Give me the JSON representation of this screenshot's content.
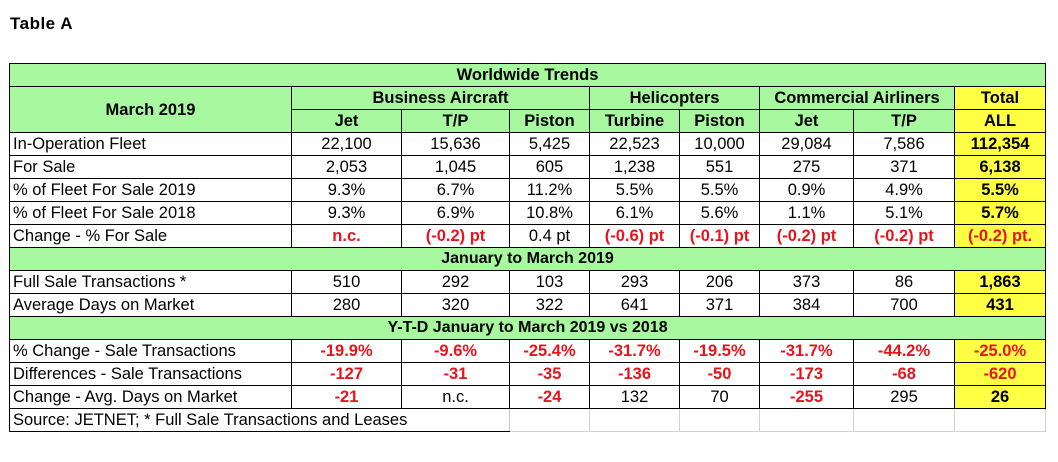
{
  "caption": "Table A",
  "header": {
    "title": "Worldwide Trends",
    "period": "March 2019",
    "groups": [
      "Business Aircraft",
      "Helicopters",
      "Commercial Airliners",
      "Total"
    ],
    "columns": [
      "Jet",
      "T/P",
      "Piston",
      "Turbine",
      "Piston",
      "Jet",
      "T/P",
      "ALL"
    ]
  },
  "section1": [
    {
      "label": "In-Operation Fleet",
      "values": [
        "22,100",
        "15,636",
        "5,425",
        "22,523",
        "10,000",
        "29,084",
        "7,586",
        "112,354"
      ]
    },
    {
      "label": "For Sale",
      "values": [
        "2,053",
        "1,045",
        "605",
        "1,238",
        "551",
        "275",
        "371",
        "6,138"
      ]
    },
    {
      "label": "% of Fleet For Sale 2019",
      "values": [
        "9.3%",
        "6.7%",
        "11.2%",
        "5.5%",
        "5.5%",
        "0.9%",
        "4.9%",
        "5.5%"
      ]
    },
    {
      "label": "% of Fleet For Sale 2018",
      "values": [
        "9.3%",
        "6.9%",
        "10.8%",
        "6.1%",
        "5.6%",
        "1.1%",
        "5.1%",
        "5.7%"
      ]
    },
    {
      "label": "Change - % For Sale",
      "values": [
        "n.c.",
        "(-0.2) pt",
        "0.4 pt",
        "(-0.6) pt",
        "(-0.1) pt",
        "(-0.2) pt",
        "(-0.2) pt",
        "(-0.2) pt."
      ]
    }
  ],
  "section2_title": "January to March 2019",
  "section2": [
    {
      "label": "Full Sale Transactions *",
      "values": [
        "510",
        "292",
        "103",
        "293",
        "206",
        "373",
        "86",
        "1,863"
      ]
    },
    {
      "label": "Average Days on Market",
      "values": [
        "280",
        "320",
        "322",
        "641",
        "371",
        "384",
        "700",
        "431"
      ]
    }
  ],
  "section3_title": "Y-T-D January to March 2019 vs 2018",
  "section3": [
    {
      "label": "% Change  - Sale Transactions",
      "values": [
        "-19.9%",
        "-9.6%",
        "-25.4%",
        "-31.7%",
        "-19.5%",
        "-31.7%",
        "-44.2%",
        "-25.0%"
      ]
    },
    {
      "label": "Differences - Sale Transactions",
      "values": [
        "-127",
        "-31",
        "-35",
        "-136",
        "-50",
        "-173",
        "-68",
        "-620"
      ]
    },
    {
      "label": "Change -  Avg. Days on Market",
      "values": [
        "-21",
        "n.c.",
        "-24",
        "132",
        "70",
        "-255",
        "295",
        "26"
      ]
    }
  ],
  "source": "Source: JETNET; * Full Sale Transactions and Leases",
  "colors": {
    "header_green": "#a8f8a0",
    "total_yellow": "#ffff44",
    "negative_red": "#e8141c"
  }
}
